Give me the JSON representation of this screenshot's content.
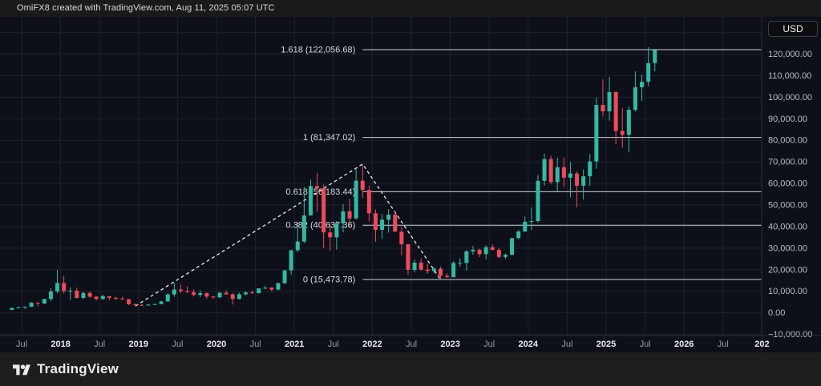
{
  "header": {
    "attribution": "OmiFX8 created with TradingView.com, Aug 11, 2025 05:07 UTC",
    "currency": "USD"
  },
  "footer": {
    "brand": "TradingView"
  },
  "chart_data": {
    "type": "candlestick",
    "quote_currency": "USD",
    "interval": "monthly",
    "start_month": "2017-05",
    "ohlc_format": [
      "open",
      "high",
      "low",
      "close"
    ],
    "ohlc": [
      [
        1400,
        2400,
        1300,
        2300
      ],
      [
        2300,
        2980,
        2100,
        2480
      ],
      [
        2480,
        2920,
        1830,
        2870
      ],
      [
        2870,
        4980,
        2650,
        4700
      ],
      [
        4700,
        4980,
        2970,
        4340
      ],
      [
        4340,
        6500,
        4100,
        6450
      ],
      [
        6450,
        11400,
        5400,
        9920
      ],
      [
        9920,
        19900,
        9000,
        13850
      ],
      [
        13850,
        17200,
        9000,
        10100
      ],
      [
        10100,
        11800,
        6000,
        10300
      ],
      [
        10300,
        11700,
        6600,
        6930
      ],
      [
        6930,
        9760,
        6430,
        9240
      ],
      [
        9240,
        9990,
        7040,
        7490
      ],
      [
        7490,
        7750,
        5780,
        6390
      ],
      [
        6390,
        8500,
        6070,
        7730
      ],
      [
        7730,
        7760,
        5860,
        7010
      ],
      [
        7010,
        7410,
        6100,
        6600
      ],
      [
        6600,
        7470,
        6190,
        6300
      ],
      [
        6300,
        6550,
        3650,
        4020
      ],
      [
        4020,
        4300,
        3150,
        3690
      ],
      [
        3690,
        4100,
        3350,
        3430
      ],
      [
        3430,
        4180,
        3330,
        3810
      ],
      [
        3810,
        4290,
        3660,
        4090
      ],
      [
        4090,
        5620,
        4020,
        5270
      ],
      [
        5270,
        9060,
        5200,
        8560
      ],
      [
        8560,
        13830,
        7430,
        10820
      ],
      [
        10820,
        13150,
        9080,
        10090
      ],
      [
        10090,
        12300,
        9350,
        9630
      ],
      [
        9630,
        10900,
        7700,
        8310
      ],
      [
        8310,
        10350,
        7300,
        9150
      ],
      [
        9150,
        9550,
        6530,
        7550
      ],
      [
        7550,
        7750,
        6430,
        7190
      ],
      [
        7190,
        9570,
        6850,
        9350
      ],
      [
        9350,
        10500,
        8400,
        8600
      ],
      [
        8600,
        9200,
        3850,
        6440
      ],
      [
        6440,
        9460,
        6150,
        8630
      ],
      [
        8630,
        10050,
        8100,
        9450
      ],
      [
        9450,
        10380,
        8830,
        9140
      ],
      [
        9140,
        11420,
        8900,
        11350
      ],
      [
        11350,
        12480,
        11000,
        11650
      ],
      [
        11650,
        12050,
        9800,
        10780
      ],
      [
        10780,
        14100,
        10370,
        13800
      ],
      [
        13800,
        19900,
        13200,
        19700
      ],
      [
        19700,
        29300,
        17570,
        29000
      ],
      [
        29000,
        42000,
        28130,
        33100
      ],
      [
        33100,
        58350,
        32300,
        45200
      ],
      [
        45200,
        61800,
        45000,
        58800
      ],
      [
        58800,
        64900,
        46930,
        57750
      ],
      [
        57750,
        59500,
        30000,
        37300
      ],
      [
        37300,
        41300,
        28800,
        35040
      ],
      [
        35040,
        42600,
        29300,
        41500
      ],
      [
        41500,
        50500,
        37330,
        47100
      ],
      [
        47100,
        52900,
        39600,
        43800
      ],
      [
        43800,
        67000,
        43280,
        61300
      ],
      [
        61300,
        69000,
        53250,
        57000
      ],
      [
        57000,
        59100,
        42330,
        46200
      ],
      [
        46200,
        47990,
        32950,
        38480
      ],
      [
        38480,
        45820,
        34300,
        43190
      ],
      [
        43190,
        48200,
        37160,
        45540
      ],
      [
        45540,
        47450,
        37580,
        37650
      ],
      [
        37650,
        40020,
        26700,
        31790
      ],
      [
        31790,
        31980,
        17600,
        19925
      ],
      [
        19925,
        24670,
        18780,
        23300
      ],
      [
        23300,
        25200,
        19520,
        20050
      ],
      [
        20050,
        22800,
        18125,
        19430
      ],
      [
        19430,
        21080,
        18190,
        20490
      ],
      [
        20490,
        21480,
        15480,
        17160
      ],
      [
        17160,
        18390,
        16250,
        16540
      ],
      [
        16540,
        23960,
        16490,
        23130
      ],
      [
        23130,
        25250,
        21450,
        23150
      ],
      [
        23150,
        29180,
        19550,
        28480
      ],
      [
        28480,
        31050,
        26940,
        29250
      ],
      [
        29250,
        29850,
        25800,
        27220
      ],
      [
        27220,
        31400,
        24800,
        30470
      ],
      [
        30470,
        31800,
        28860,
        29230
      ],
      [
        29230,
        30180,
        25350,
        25930
      ],
      [
        25930,
        27480,
        24900,
        26960
      ],
      [
        26960,
        34700,
        26540,
        34660
      ],
      [
        34660,
        38400,
        34100,
        37720
      ],
      [
        37720,
        44700,
        37600,
        42270
      ],
      [
        42270,
        48970,
        38500,
        42580
      ],
      [
        42580,
        63930,
        41880,
        61200
      ],
      [
        61200,
        73800,
        59000,
        71330
      ],
      [
        71330,
        72800,
        59600,
        60640
      ],
      [
        60640,
        71950,
        56500,
        67530
      ],
      [
        67530,
        71980,
        58400,
        62680
      ],
      [
        62680,
        69990,
        53500,
        64620
      ],
      [
        64620,
        65600,
        49000,
        58970
      ],
      [
        58970,
        66500,
        52550,
        63330
      ],
      [
        63330,
        73600,
        58870,
        70220
      ],
      [
        70220,
        99800,
        66830,
        96400
      ],
      [
        96400,
        108300,
        91000,
        93430
      ],
      [
        93430,
        109400,
        89160,
        102400
      ],
      [
        102400,
        102800,
        78250,
        84350
      ],
      [
        84350,
        95000,
        76600,
        82550
      ],
      [
        82550,
        95770,
        74420,
        94180
      ],
      [
        94180,
        112000,
        93300,
        104600
      ],
      [
        104600,
        110530,
        98200,
        107140
      ],
      [
        107140,
        123200,
        105100,
        115800
      ],
      [
        115800,
        122400,
        112000,
        121900
      ]
    ],
    "fib_retracement": {
      "anchor_month": "2021-11",
      "levels": [
        {
          "level": "1.618",
          "price": 122056.68,
          "label": "1.618 (122,056.68)"
        },
        {
          "level": "1",
          "price": 81347.02,
          "label": "1 (81,347.02)"
        },
        {
          "level": "0.618",
          "price": 56183.44,
          "label": "0.618 (56,183.44)"
        },
        {
          "level": "0.382",
          "price": 40637.36,
          "label": "0.382 (40,637.36)"
        },
        {
          "level": "0",
          "price": 15473.78,
          "label": "0 (15,473.78)"
        }
      ]
    },
    "trendline": {
      "style": "dashed",
      "points": [
        {
          "month": "2018-12",
          "price": 3150
        },
        {
          "month": "2021-11",
          "price": 69000
        },
        {
          "month": "2022-11",
          "price": 15473.78
        }
      ]
    },
    "x_ticks": [
      {
        "label": "Jul",
        "major": false
      },
      {
        "label": "2018",
        "major": true
      },
      {
        "label": "Jul",
        "major": false
      },
      {
        "label": "2019",
        "major": true
      },
      {
        "label": "Jul",
        "major": false
      },
      {
        "label": "2020",
        "major": true
      },
      {
        "label": "Jul",
        "major": false
      },
      {
        "label": "2021",
        "major": true
      },
      {
        "label": "Jul",
        "major": false
      },
      {
        "label": "2022",
        "major": true
      },
      {
        "label": "Jul",
        "major": false
      },
      {
        "label": "2023",
        "major": true
      },
      {
        "label": "Jul",
        "major": false
      },
      {
        "label": "2024",
        "major": true
      },
      {
        "label": "Jul",
        "major": false
      },
      {
        "label": "2025",
        "major": true
      },
      {
        "label": "Jul",
        "major": false
      },
      {
        "label": "2026",
        "major": true
      },
      {
        "label": "Jul",
        "major": false
      },
      {
        "label": "202",
        "major": true
      }
    ],
    "y_ticks": [
      {
        "price": 120000,
        "label": "120,000.00"
      },
      {
        "price": 110000,
        "label": "110,000.00"
      },
      {
        "price": 100000,
        "label": "100,000.00"
      },
      {
        "price": 90000,
        "label": "90,000.00"
      },
      {
        "price": 80000,
        "label": "80,000.00"
      },
      {
        "price": 70000,
        "label": "70,000.00"
      },
      {
        "price": 60000,
        "label": "60,000.00"
      },
      {
        "price": 50000,
        "label": "50,000.00"
      },
      {
        "price": 40000,
        "label": "40,000.00"
      },
      {
        "price": 30000,
        "label": "30,000.00"
      },
      {
        "price": 20000,
        "label": "20,000.00"
      },
      {
        "price": 10000,
        "label": "10,000.00"
      },
      {
        "price": 0,
        "label": "0.00"
      },
      {
        "price": -10000,
        "label": "−10,000.00"
      }
    ],
    "visible_price_range": [
      -10500,
      137300
    ],
    "colors": {
      "up": "#34b8a4",
      "down": "#ef4a5a",
      "fib_line": "#cfd2d8",
      "fib_text": "#d6d9df",
      "trend_line": "#e9ebf0",
      "grid": "#1c2230",
      "axis_border": "#2a2e39",
      "axis_text": "#b9bdc6",
      "axis_text_minor": "#959ba6",
      "axis_text_major": "#e8eaee",
      "background": "#0d1018"
    }
  }
}
